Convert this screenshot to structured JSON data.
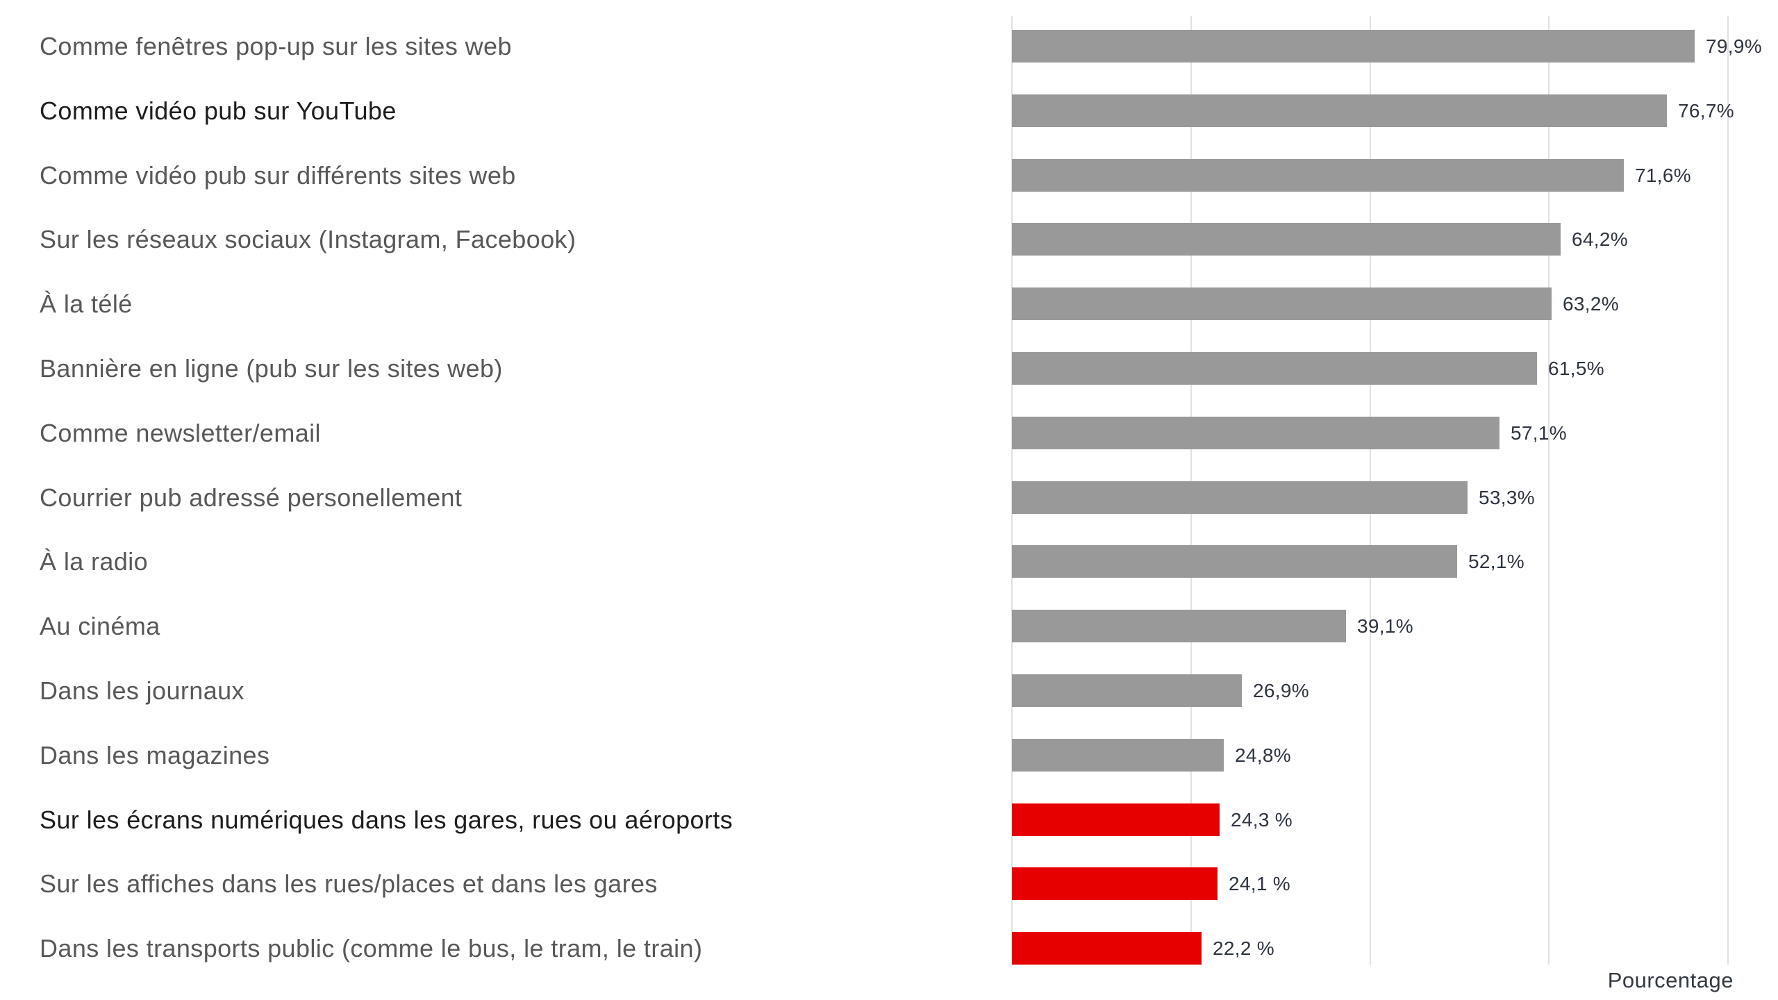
{
  "chart_data": {
    "type": "bar",
    "orientation": "horizontal",
    "title": "",
    "xlabel": "Pourcentage",
    "ylabel": "",
    "xlim": [
      0,
      89.7
    ],
    "grid": "vertical",
    "gridline_values_pct": [
      0,
      21.0,
      41.9,
      62.8,
      83.8
    ],
    "legend": "none",
    "bar_color": "#999999",
    "highlight_color": "#e60000",
    "label_color_default": "#58585a",
    "label_color_emphasis": "#1d1d1f",
    "value_label_color": "#2e3440",
    "categories": [
      "Comme fenêtres pop-up sur les sites web",
      "Comme vidéo pub sur YouTube",
      "Comme vidéo pub sur différents sites web",
      "Sur les réseaux sociaux (Instagram, Facebook)",
      "À la télé",
      "Bannière en ligne (pub sur les sites web)",
      "Comme newsletter/email",
      "Courrier pub adressé personellement",
      "À la radio",
      "Au cinéma",
      "Dans les journaux",
      "Dans les magazines",
      "Sur les écrans numériques dans les gares, rues ou aéroports",
      "Sur les affiches dans les rues/places et dans les gares",
      "Dans les transports public (comme le bus, le tram, le train)"
    ],
    "values": [
      79.9,
      76.7,
      71.6,
      64.2,
      63.2,
      61.5,
      57.1,
      53.3,
      52.1,
      39.1,
      26.9,
      24.8,
      24.3,
      24.1,
      22.2
    ],
    "value_labels": [
      "79,9%",
      "76,7%",
      "71,6%",
      "64,2%",
      "63,2%",
      "61,5%",
      "57,1%",
      "53,3%",
      "52,1%",
      "39,1%",
      "26,9%",
      "24,8%",
      "24,3 %",
      "24,1 %",
      "22,2 %"
    ],
    "highlighted": [
      false,
      false,
      false,
      false,
      false,
      false,
      false,
      false,
      false,
      false,
      false,
      false,
      true,
      true,
      true
    ],
    "emphasized": [
      false,
      true,
      false,
      false,
      false,
      false,
      false,
      false,
      false,
      false,
      false,
      false,
      true,
      false,
      false
    ]
  }
}
